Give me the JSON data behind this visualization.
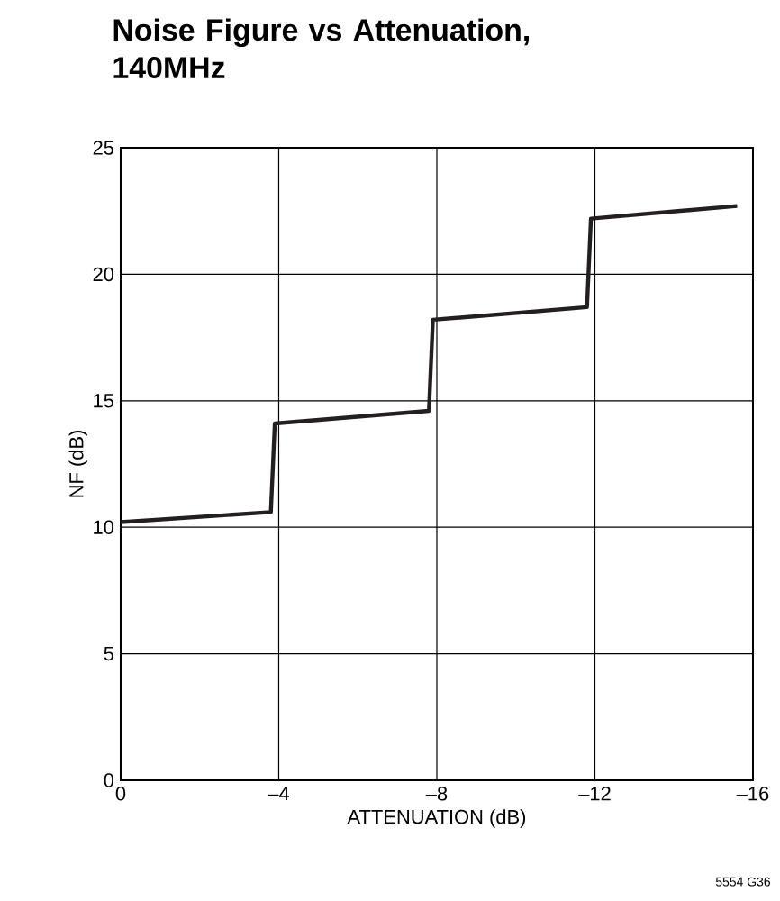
{
  "chart_data": {
    "type": "line",
    "title": "Noise Figure vs Attenuation, 140MHz",
    "xlabel": "ATTENUATION (dB)",
    "ylabel": "NF (dB)",
    "annotations": [
      "5554 G36"
    ],
    "x": [
      0,
      -3.8,
      -3.9,
      -7.8,
      -7.9,
      -11.8,
      -11.9,
      -15.6
    ],
    "series": [
      {
        "color": "#231f20",
        "values": [
          10.2,
          10.6,
          14.1,
          14.6,
          18.2,
          18.7,
          22.2,
          22.7
        ]
      }
    ],
    "xlim": [
      0,
      -16
    ],
    "ylim": [
      0,
      25
    ],
    "xticks": [
      0,
      {
        "value": -4,
        "label": "–4"
      },
      {
        "value": -8,
        "label": "–8"
      },
      {
        "value": -12,
        "label": "–12"
      },
      {
        "value": -16,
        "label": "–16"
      }
    ],
    "yticks": [
      0,
      5,
      10,
      15,
      20,
      25
    ],
    "grid": true,
    "marker": "none",
    "line_style": "solid"
  }
}
